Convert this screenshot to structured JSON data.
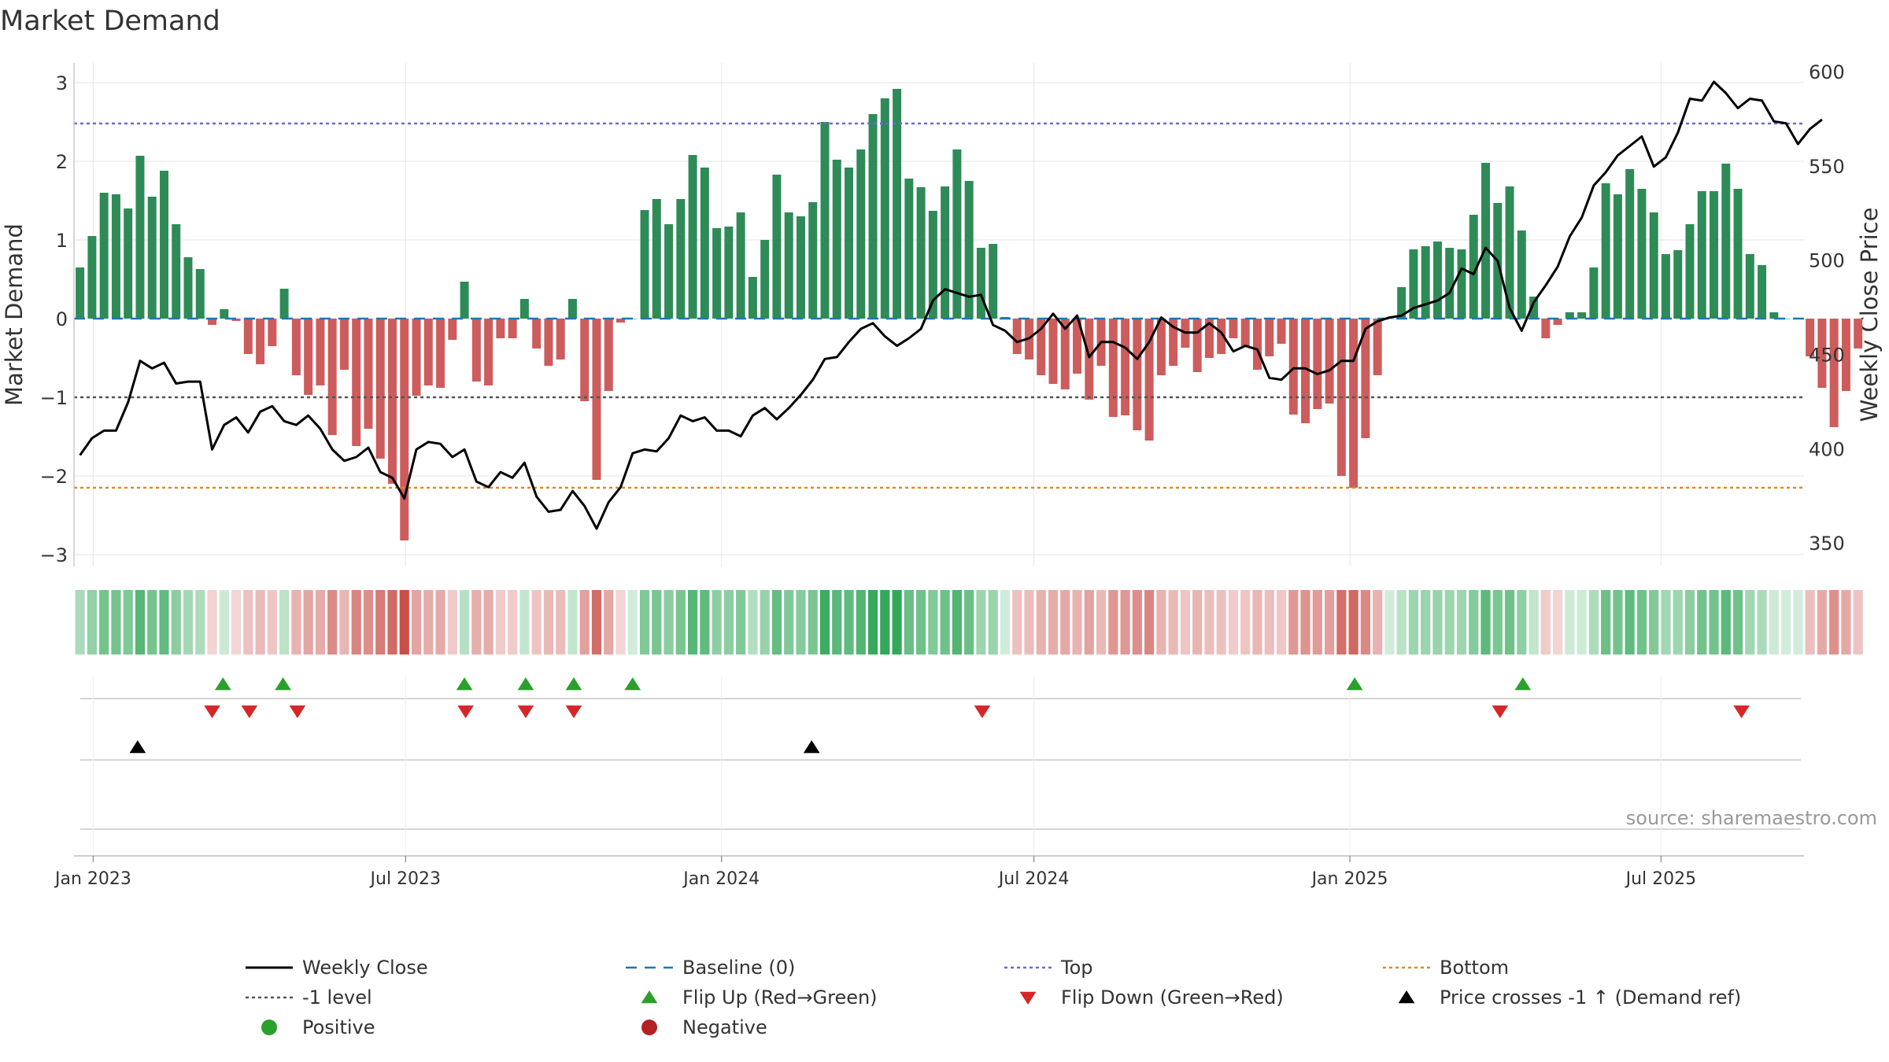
{
  "chart_data": {
    "type": "bar",
    "title": "Market Demand",
    "ylabel": "Market Demand",
    "y2label": "Weekly Close Price",
    "source": "source: sharemaestro.com",
    "ylim": [
      -3.2,
      3.2
    ],
    "y2lim": [
      338,
      605
    ],
    "yticks": [
      3,
      2,
      1,
      0,
      -1,
      -2,
      -3
    ],
    "ytick_labels": [
      "3",
      "2",
      "1",
      "0",
      "−1",
      "−2",
      "−3"
    ],
    "y2ticks": [
      600,
      550,
      500,
      450,
      400,
      350
    ],
    "y2tick_labels": [
      "600",
      "550",
      "500",
      "450",
      "400",
      "350"
    ],
    "xticks": [
      "Jan 2023",
      "Jul 2023",
      "Jan 2024",
      "Jul 2024",
      "Jan 2025",
      "Jul 2025"
    ],
    "xtick_weeks": [
      1.6,
      27.6,
      53.9,
      79.9,
      106.2,
      132.1
    ],
    "reference_lines": {
      "baseline": 0,
      "top": 2.48,
      "bottom": -2.15,
      "minus_one": -1
    },
    "weeks": 144,
    "series": [
      {
        "name": "Market Demand",
        "type": "bar",
        "values": [
          0.65,
          1.05,
          1.6,
          1.58,
          1.4,
          2.07,
          1.55,
          1.88,
          1.2,
          0.78,
          0.63,
          -0.08,
          0.12,
          -0.03,
          -0.45,
          -0.58,
          -0.35,
          0.38,
          -0.72,
          -0.97,
          -0.85,
          -1.48,
          -0.65,
          -1.62,
          -1.4,
          -1.78,
          -2.1,
          -2.82,
          -0.98,
          -0.85,
          -0.88,
          -0.27,
          0.47,
          -0.8,
          -0.85,
          -0.25,
          -0.25,
          0.25,
          -0.38,
          -0.6,
          -0.52,
          0.25,
          -1.05,
          -2.05,
          -0.92,
          -0.05,
          0.0,
          1.38,
          1.52,
          1.2,
          1.52,
          2.08,
          1.92,
          1.15,
          1.17,
          1.35,
          0.53,
          1.0,
          1.83,
          1.35,
          1.3,
          1.48,
          2.5,
          2.02,
          1.92,
          2.15,
          2.6,
          2.8,
          2.92,
          1.78,
          1.67,
          1.37,
          1.68,
          2.15,
          1.75,
          0.9,
          0.95,
          0.02,
          -0.45,
          -0.52,
          -0.72,
          -0.83,
          -0.9,
          -0.7,
          -1.03,
          -0.6,
          -1.25,
          -1.23,
          -1.42,
          -1.55,
          -0.72,
          -0.6,
          -0.37,
          -0.68,
          -0.5,
          -0.45,
          -0.25,
          -0.35,
          -0.65,
          -0.48,
          -0.32,
          -1.22,
          -1.33,
          -1.15,
          -1.08,
          -2.0,
          -2.15,
          -1.52,
          -0.72,
          0.0,
          0.4,
          0.88,
          0.92,
          0.98,
          0.9,
          0.88,
          1.32,
          1.98,
          1.47,
          1.68,
          1.12,
          0.28,
          -0.25,
          -0.08,
          0.08,
          0.08,
          0.65,
          1.72,
          1.58,
          1.9,
          1.65,
          1.35,
          0.82,
          0.87,
          1.2,
          1.62,
          1.62,
          1.97,
          1.65,
          0.82,
          0.68,
          0.08,
          0.0,
          0.0,
          -0.48,
          -0.88,
          -1.38,
          -0.92,
          -0.38
        ]
      },
      {
        "name": "Weekly Close",
        "type": "line",
        "axis": "right",
        "values": [
          397,
          406,
          410,
          410,
          425,
          447,
          443,
          446,
          435,
          436,
          436,
          400,
          413,
          417,
          409,
          420,
          423,
          415,
          413,
          418,
          411,
          400,
          394,
          396,
          401,
          388,
          385,
          374,
          400,
          404,
          403,
          396,
          400,
          383,
          380,
          388,
          385,
          393,
          375,
          367,
          368,
          378,
          370,
          358,
          372,
          380,
          398,
          400,
          399,
          406,
          418,
          415,
          417,
          410,
          410,
          407,
          418,
          422,
          416,
          422,
          429,
          437,
          448,
          449,
          457,
          464,
          467,
          460,
          455,
          459,
          464,
          479,
          485,
          483,
          481,
          482,
          466,
          463,
          457,
          459,
          464,
          472,
          464,
          471,
          449,
          457,
          457,
          454,
          448,
          457,
          470,
          465,
          462,
          462,
          467,
          462,
          452,
          455,
          453,
          438,
          437,
          443,
          443,
          440,
          442,
          447,
          447,
          464,
          468,
          470,
          471,
          475,
          477,
          479,
          483,
          496,
          493,
          507,
          500,
          475,
          463,
          478,
          487,
          497,
          513,
          523,
          540,
          547,
          556,
          561,
          566,
          550,
          555,
          568,
          586,
          585,
          595,
          589,
          581,
          586,
          585,
          574,
          573,
          562,
          570,
          575
        ]
      }
    ],
    "markers": {
      "flip_up": [
        12.4,
        17.4,
        32.5,
        37.6,
        41.6,
        46.5,
        106.6,
        120.6
      ],
      "flip_down": [
        11.5,
        14.6,
        18.6,
        32.6,
        37.6,
        41.6,
        75.6,
        118.7,
        138.8
      ],
      "price_cross": [
        5.3,
        61.4
      ]
    },
    "legend": {
      "position": "bottom",
      "entries": [
        {
          "label": "Weekly Close",
          "symbol": "line",
          "color": "#000000"
        },
        {
          "label": "Baseline (0)",
          "symbol": "dashed",
          "color": "#1f77b4"
        },
        {
          "label": "Top",
          "symbol": "dotted",
          "color": "#6a6ad8"
        },
        {
          "label": "Bottom",
          "symbol": "dotted",
          "color": "#e08a1e"
        },
        {
          "label": "-1 level",
          "symbol": "dotted",
          "color": "#555555"
        },
        {
          "label": "Flip Up (Red→Green)",
          "symbol": "triangle-up",
          "color": "#2ca02c"
        },
        {
          "label": "Flip Down (Green→Red)",
          "symbol": "triangle-down",
          "color": "#d62728"
        },
        {
          "label": "Price crosses -1 ↑ (Demand ref)",
          "symbol": "triangle-up",
          "color": "#000000"
        },
        {
          "label": "Positive",
          "symbol": "circle",
          "color": "#2ca02c"
        },
        {
          "label": "Negative",
          "symbol": "circle",
          "color": "#b22222"
        }
      ]
    },
    "colors": {
      "positive_bar": "#2e8b57",
      "negative_bar": "#cd5c5c",
      "grid": "#e6e6e6",
      "axis": "#cccccc"
    }
  }
}
